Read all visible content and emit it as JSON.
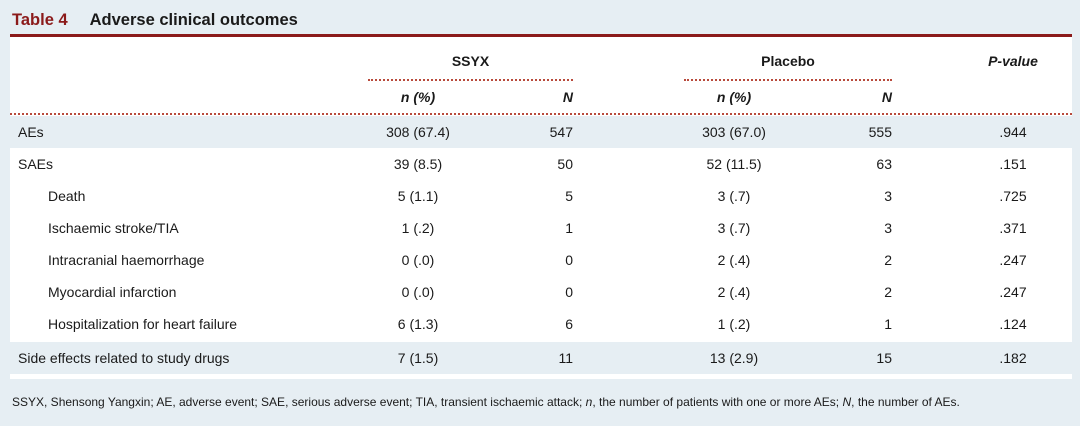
{
  "title": {
    "label": "Table 4",
    "text": "Adverse clinical outcomes"
  },
  "headers": {
    "group1": "SSYX",
    "group2": "Placebo",
    "pvalue": "P-value",
    "sub_n": "n (%)",
    "sub_N": "N"
  },
  "rows": [
    {
      "label": "AEs",
      "n1": "308 (67.4)",
      "N1": "547",
      "n2": "303 (67.0)",
      "N2": "555",
      "p": ".944"
    },
    {
      "label": "SAEs",
      "n1": "39 (8.5)",
      "N1": "50",
      "n2": "52 (11.5)",
      "N2": "63",
      "p": ".151"
    },
    {
      "label": "Death",
      "n1": "5 (1.1)",
      "N1": "5",
      "n2": "3 (.7)",
      "N2": "3",
      "p": ".725"
    },
    {
      "label": "Ischaemic stroke/TIA",
      "n1": "1 (.2)",
      "N1": "1",
      "n2": "3 (.7)",
      "N2": "3",
      "p": ".371"
    },
    {
      "label": "Intracranial haemorrhage",
      "n1": "0 (.0)",
      "N1": "0",
      "n2": "2 (.4)",
      "N2": "2",
      "p": ".247"
    },
    {
      "label": "Myocardial infarction",
      "n1": "0 (.0)",
      "N1": "0",
      "n2": "2 (.4)",
      "N2": "2",
      "p": ".247"
    },
    {
      "label": "Hospitalization for heart failure",
      "n1": "6 (1.3)",
      "N1": "6",
      "n2": "1 (.2)",
      "N2": "1",
      "p": ".124"
    },
    {
      "label": "Side effects related to study drugs",
      "n1": "7 (1.5)",
      "N1": "11",
      "n2": "13 (2.9)",
      "N2": "15",
      "p": ".182"
    }
  ],
  "footnote": {
    "part1": "SSYX, Shensong Yangxin; AE, adverse event; SAE, serious adverse event; TIA, transient ischaemic attack; ",
    "n_sym": "n",
    "part2": ", the number of patients with one or more AEs; ",
    "N_sym": "N",
    "part3": ", the number of AEs."
  },
  "colors": {
    "accent": "#8b1a1a",
    "shade": "#e6eef3",
    "dots": "#b84a3c"
  }
}
